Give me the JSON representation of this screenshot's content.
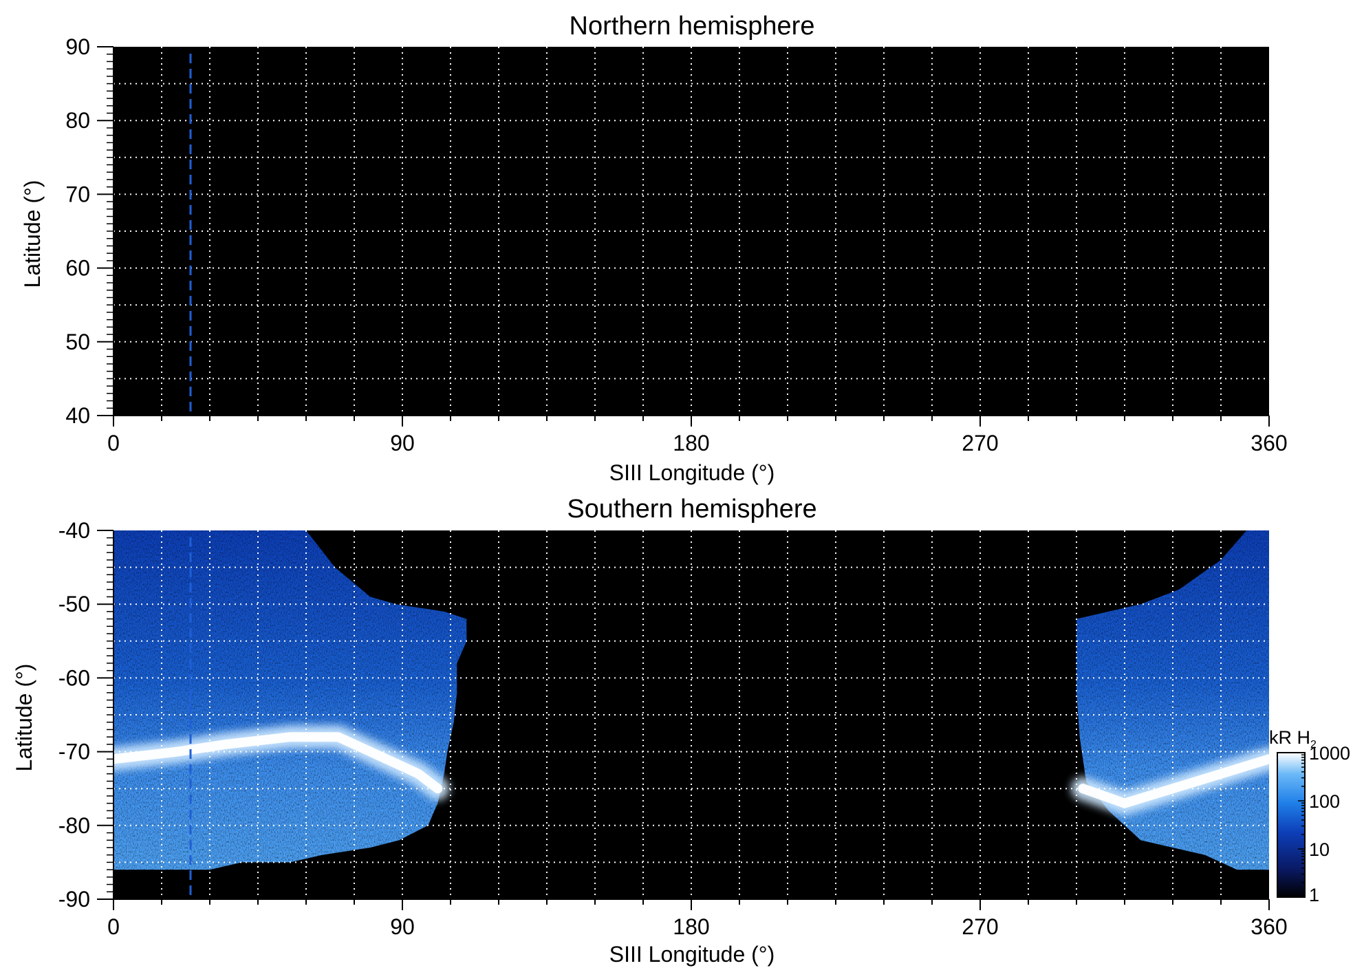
{
  "chart_data": [
    {
      "type": "heatmap",
      "title": "Northern hemisphere",
      "xlabel": "SIII Longitude (°)",
      "ylabel": "Latitude (°)",
      "xlim": [
        0,
        360
      ],
      "ylim": [
        40,
        90
      ],
      "xticks": [
        "0",
        "90",
        "180",
        "270",
        "360"
      ],
      "yticks": [
        "40",
        "50",
        "60",
        "70",
        "80",
        "90"
      ],
      "grid": true,
      "grid_spacing": {
        "longitude": 15,
        "latitude": 5
      },
      "background_color": "#000000",
      "grid_color": "#ffffff",
      "emission": "none",
      "reference_line": {
        "longitude": 24,
        "style": "dashed",
        "color": "#1f5fd6"
      }
    },
    {
      "type": "heatmap",
      "title": "Southern hemisphere",
      "xlabel": "SIII Longitude (°)",
      "ylabel": "Latitude (°)",
      "xlim": [
        0,
        360
      ],
      "ylim": [
        -90,
        -40
      ],
      "xticks": [
        "0",
        "90",
        "180",
        "270",
        "360"
      ],
      "yticks": [
        "-40",
        "-50",
        "-60",
        "-70",
        "-80",
        "-90"
      ],
      "grid": true,
      "grid_spacing": {
        "longitude": 15,
        "latitude": 5
      },
      "background_color": "#000000",
      "grid_color": "#ffffff",
      "reference_line": {
        "longitude": 24,
        "style": "dashed",
        "color": "#1f5fd6"
      },
      "coverage_regions": [
        {
          "name": "west lobe",
          "boundary": [
            [
              0,
              -40
            ],
            [
              60,
              -40
            ],
            [
              69,
              -45
            ],
            [
              80,
              -49
            ],
            [
              88,
              -50
            ],
            [
              103,
              -51
            ],
            [
              110,
              -52
            ],
            [
              110,
              -55
            ],
            [
              107,
              -58
            ],
            [
              107,
              -62
            ],
            [
              106,
              -66
            ],
            [
              104,
              -70
            ],
            [
              103,
              -73
            ],
            [
              101,
              -77
            ],
            [
              98,
              -80
            ],
            [
              89,
              -82
            ],
            [
              80,
              -83
            ],
            [
              65,
              -84
            ],
            [
              55,
              -85
            ],
            [
              50,
              -85
            ],
            [
              40,
              -85
            ],
            [
              30,
              -86
            ],
            [
              20,
              -86
            ],
            [
              0,
              -86
            ]
          ],
          "auroral_oval": [
            [
              0,
              -71
            ],
            [
              20,
              -70
            ],
            [
              35,
              -69
            ],
            [
              55,
              -68
            ],
            [
              70,
              -68
            ],
            [
              85,
              -71
            ],
            [
              95,
              -73
            ],
            [
              101,
              -75
            ]
          ]
        },
        {
          "name": "east lobe",
          "boundary": [
            [
              300,
              -52
            ],
            [
              320,
              -50
            ],
            [
              332,
              -48
            ],
            [
              345,
              -44
            ],
            [
              353,
              -40
            ],
            [
              360,
              -40
            ],
            [
              360,
              -86
            ],
            [
              350,
              -86
            ],
            [
              340,
              -84
            ],
            [
              320,
              -82
            ],
            [
              310,
              -78
            ],
            [
              303,
              -74
            ],
            [
              301,
              -68
            ],
            [
              300,
              -62
            ],
            [
              300,
              -56
            ]
          ],
          "auroral_oval": [
            [
              302,
              -75
            ],
            [
              315,
              -77
            ],
            [
              330,
              -75
            ],
            [
              345,
              -73
            ],
            [
              360,
              -71
            ]
          ]
        }
      ]
    }
  ],
  "colorbar": {
    "label": "kR H",
    "label_subscript": "2",
    "scale": "log",
    "range": [
      1,
      1000
    ],
    "ticks": [
      "1",
      "10",
      "100",
      "1000"
    ],
    "colors": [
      "#000000",
      "#0a1a66",
      "#0d3fb8",
      "#1f7fe8",
      "#6ab8f7",
      "#ffffff"
    ]
  }
}
